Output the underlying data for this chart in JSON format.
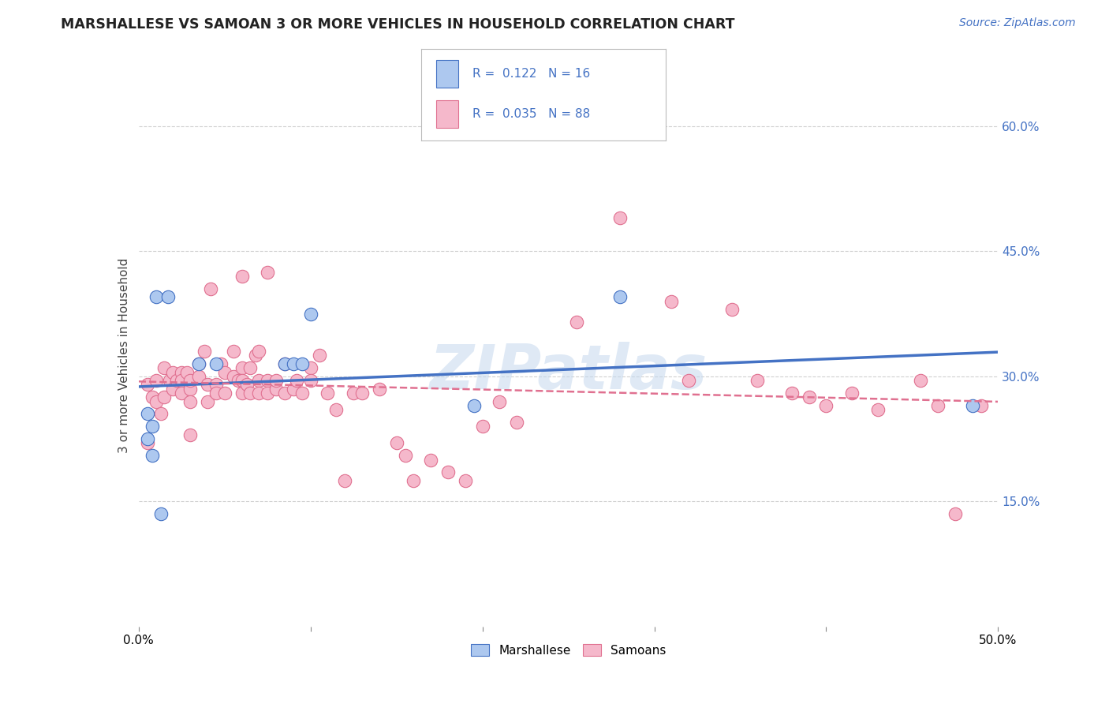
{
  "title": "MARSHALLESE VS SAMOAN 3 OR MORE VEHICLES IN HOUSEHOLD CORRELATION CHART",
  "source": "Source: ZipAtlas.com",
  "ylabel": "3 or more Vehicles in Household",
  "xlim": [
    0.0,
    0.5
  ],
  "ylim": [
    0.0,
    0.65
  ],
  "xticks": [
    0.0,
    0.1,
    0.2,
    0.3,
    0.4,
    0.5
  ],
  "xtick_labels": [
    "0.0%",
    "",
    "",
    "",
    "",
    "50.0%"
  ],
  "ytick_labels_right": [
    "15.0%",
    "30.0%",
    "45.0%",
    "60.0%"
  ],
  "yticks_right": [
    0.15,
    0.3,
    0.45,
    0.6
  ],
  "marshallese_color": "#adc8ef",
  "samoan_color": "#f5b8cb",
  "marshallese_line_color": "#4472c4",
  "samoan_line_color": "#e07090",
  "legend_text_color": "#4472c4",
  "R_marshallese": 0.122,
  "N_marshallese": 16,
  "R_samoan": 0.035,
  "N_samoan": 88,
  "watermark": "ZIPatlas",
  "marshallese_x": [
    0.005,
    0.005,
    0.008,
    0.008,
    0.01,
    0.013,
    0.017,
    0.035,
    0.045,
    0.085,
    0.09,
    0.095,
    0.1,
    0.195,
    0.28,
    0.485
  ],
  "marshallese_y": [
    0.225,
    0.255,
    0.24,
    0.205,
    0.395,
    0.135,
    0.395,
    0.315,
    0.315,
    0.315,
    0.315,
    0.315,
    0.375,
    0.265,
    0.395,
    0.265
  ],
  "samoan_x": [
    0.005,
    0.005,
    0.008,
    0.01,
    0.01,
    0.013,
    0.015,
    0.015,
    0.018,
    0.02,
    0.02,
    0.022,
    0.025,
    0.025,
    0.025,
    0.028,
    0.03,
    0.03,
    0.03,
    0.03,
    0.035,
    0.035,
    0.038,
    0.04,
    0.04,
    0.042,
    0.045,
    0.045,
    0.048,
    0.05,
    0.05,
    0.055,
    0.055,
    0.058,
    0.06,
    0.06,
    0.06,
    0.06,
    0.063,
    0.065,
    0.065,
    0.068,
    0.07,
    0.07,
    0.07,
    0.075,
    0.075,
    0.075,
    0.08,
    0.08,
    0.085,
    0.085,
    0.09,
    0.092,
    0.095,
    0.1,
    0.1,
    0.105,
    0.11,
    0.115,
    0.12,
    0.125,
    0.13,
    0.14,
    0.15,
    0.155,
    0.16,
    0.17,
    0.18,
    0.19,
    0.2,
    0.21,
    0.22,
    0.255,
    0.28,
    0.31,
    0.32,
    0.345,
    0.36,
    0.38,
    0.39,
    0.4,
    0.415,
    0.43,
    0.455,
    0.465,
    0.475,
    0.49
  ],
  "samoan_y": [
    0.22,
    0.29,
    0.275,
    0.295,
    0.27,
    0.255,
    0.31,
    0.275,
    0.295,
    0.305,
    0.285,
    0.295,
    0.305,
    0.295,
    0.28,
    0.305,
    0.285,
    0.295,
    0.27,
    0.23,
    0.315,
    0.3,
    0.33,
    0.29,
    0.27,
    0.405,
    0.29,
    0.28,
    0.315,
    0.305,
    0.28,
    0.33,
    0.3,
    0.295,
    0.31,
    0.295,
    0.28,
    0.42,
    0.29,
    0.31,
    0.28,
    0.325,
    0.295,
    0.33,
    0.28,
    0.295,
    0.28,
    0.425,
    0.285,
    0.295,
    0.315,
    0.28,
    0.285,
    0.295,
    0.28,
    0.31,
    0.295,
    0.325,
    0.28,
    0.26,
    0.175,
    0.28,
    0.28,
    0.285,
    0.22,
    0.205,
    0.175,
    0.2,
    0.185,
    0.175,
    0.24,
    0.27,
    0.245,
    0.365,
    0.49,
    0.39,
    0.295,
    0.38,
    0.295,
    0.28,
    0.275,
    0.265,
    0.28,
    0.26,
    0.295,
    0.265,
    0.135,
    0.265
  ]
}
